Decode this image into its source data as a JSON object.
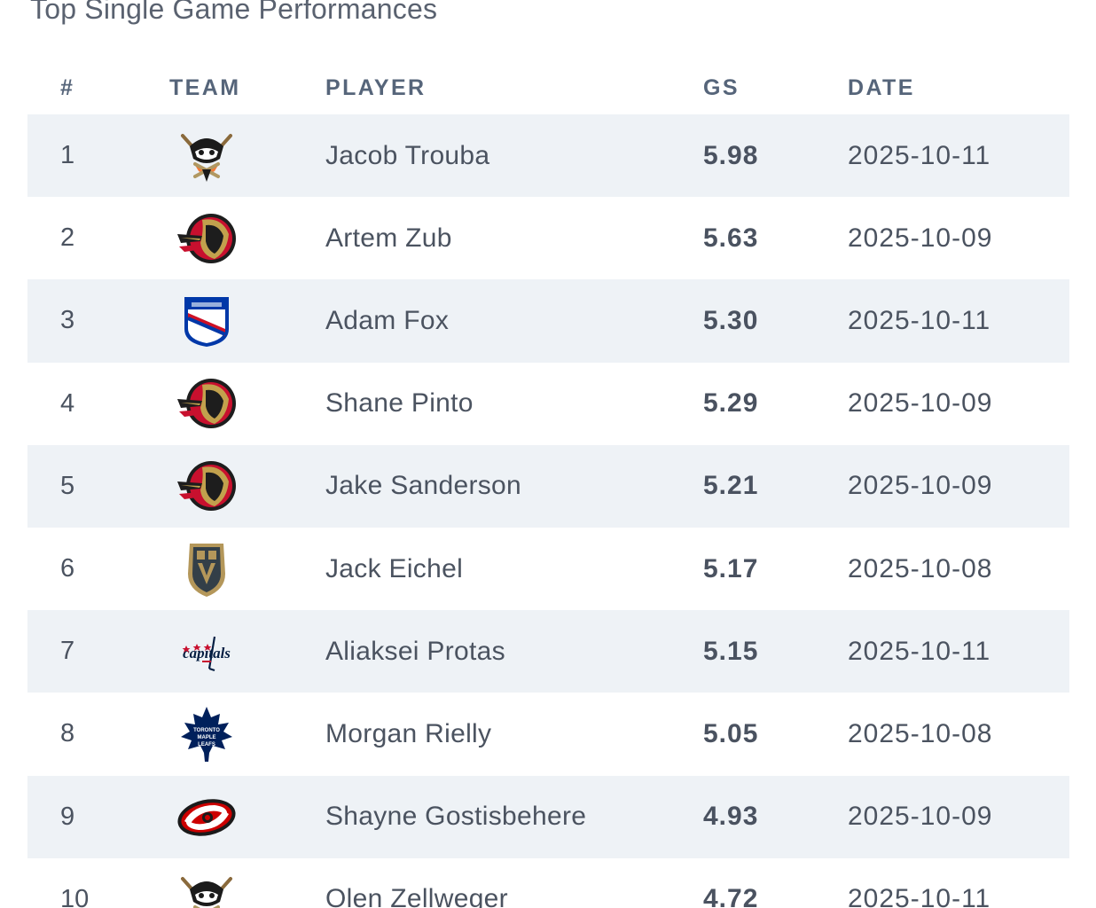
{
  "title": "Top Single Game Performances",
  "columns": {
    "rank": "#",
    "team": "TEAM",
    "player": "PLAYER",
    "gs": "GS",
    "date": "DATE"
  },
  "rows": [
    {
      "rank": "1",
      "team_logo": "ducks-logo-icon",
      "player": "Jacob Trouba",
      "gs": "5.98",
      "date": "2025-10-11"
    },
    {
      "rank": "2",
      "team_logo": "senators-logo-icon",
      "player": "Artem Zub",
      "gs": "5.63",
      "date": "2025-10-09"
    },
    {
      "rank": "3",
      "team_logo": "rangers-logo-icon",
      "player": "Adam Fox",
      "gs": "5.30",
      "date": "2025-10-11"
    },
    {
      "rank": "4",
      "team_logo": "senators-logo-icon",
      "player": "Shane Pinto",
      "gs": "5.29",
      "date": "2025-10-09"
    },
    {
      "rank": "5",
      "team_logo": "senators-logo-icon",
      "player": "Jake Sanderson",
      "gs": "5.21",
      "date": "2025-10-09"
    },
    {
      "rank": "6",
      "team_logo": "golden-knights-logo-icon",
      "player": "Jack Eichel",
      "gs": "5.17",
      "date": "2025-10-08"
    },
    {
      "rank": "7",
      "team_logo": "capitals-logo-icon",
      "player": "Aliaksei Protas",
      "gs": "5.15",
      "date": "2025-10-11"
    },
    {
      "rank": "8",
      "team_logo": "maple-leafs-logo-icon",
      "player": "Morgan Rielly",
      "gs": "5.05",
      "date": "2025-10-08"
    },
    {
      "rank": "9",
      "team_logo": "hurricanes-logo-icon",
      "player": "Shayne Gostisbehere",
      "gs": "4.93",
      "date": "2025-10-09"
    },
    {
      "rank": "10",
      "team_logo": "ducks-logo-icon",
      "player": "Olen Zellweger",
      "gs": "4.72",
      "date": "2025-10-11"
    }
  ],
  "colors": {
    "row_shade": "#eef2f6",
    "header_text": "#56657a",
    "body_text": "#4b5360"
  }
}
